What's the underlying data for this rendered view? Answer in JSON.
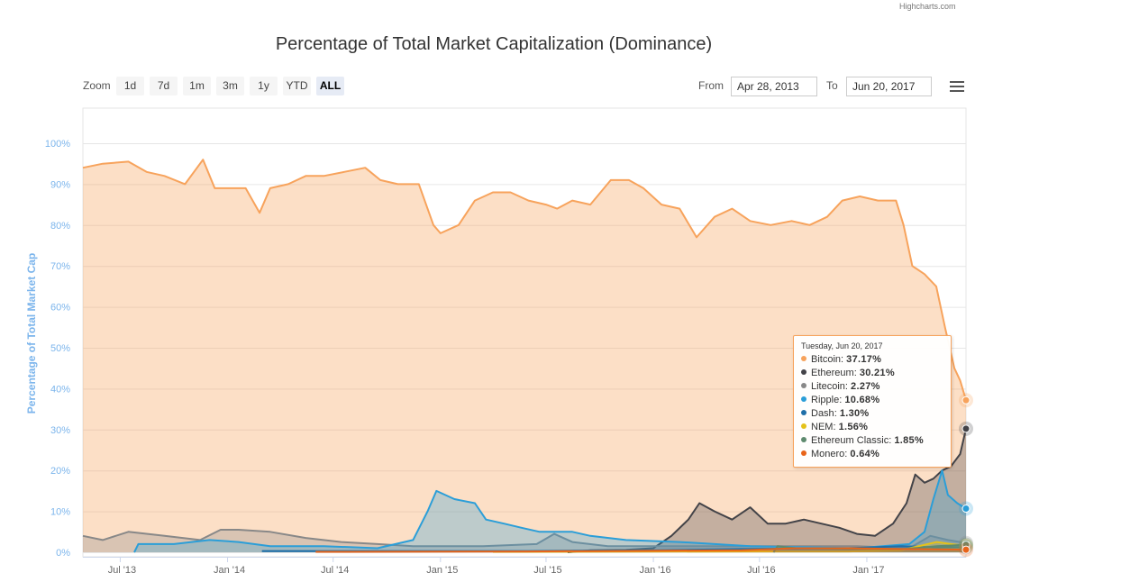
{
  "credit": "Highcharts.com",
  "range_selector": {
    "zoom_label": "Zoom",
    "buttons": [
      {
        "label": "1d",
        "active": false
      },
      {
        "label": "7d",
        "active": false
      },
      {
        "label": "1m",
        "active": false
      },
      {
        "label": "3m",
        "active": false
      },
      {
        "label": "1y",
        "active": false
      },
      {
        "label": "YTD",
        "active": false
      },
      {
        "label": "ALL",
        "active": true
      }
    ],
    "from_label": "From",
    "from_value": "Apr 28, 2013",
    "to_label": "To",
    "to_value": "Jun 20, 2017"
  },
  "menu_icon": "hamburger-menu-icon",
  "tooltip": {
    "date": "Tuesday, Jun 20, 2017",
    "rows": [
      {
        "name": "Bitcoin",
        "value": "37.17%",
        "color": "#f7a35c"
      },
      {
        "name": "Ethereum",
        "value": "30.21%",
        "color": "#434348"
      },
      {
        "name": "Litecoin",
        "value": "2.27%",
        "color": "#888888"
      },
      {
        "name": "Ripple",
        "value": "10.68%",
        "color": "#2b9ed8"
      },
      {
        "name": "Dash",
        "value": "1.30%",
        "color": "#1f6fa8"
      },
      {
        "name": "NEM",
        "value": "1.56%",
        "color": "#e4c21a"
      },
      {
        "name": "Ethereum Classic",
        "value": "1.85%",
        "color": "#5e8a6e"
      },
      {
        "name": "Monero",
        "value": "0.64%",
        "color": "#e8641a"
      }
    ]
  },
  "chart_data": {
    "type": "area",
    "title": "Percentage of Total Market Capitalization (Dominance)",
    "xlabel": "",
    "ylabel": "Percentage of Total Market Cap",
    "x_range": [
      "2013-04-28",
      "2017-06-20"
    ],
    "ylim": [
      0,
      100
    ],
    "y_ticks": [
      "0%",
      "10%",
      "20%",
      "30%",
      "40%",
      "50%",
      "60%",
      "70%",
      "80%",
      "90%",
      "100%"
    ],
    "x_ticks": [
      {
        "label": "Jul '13",
        "date": "2013-07-01"
      },
      {
        "label": "Jan '14",
        "date": "2014-01-01"
      },
      {
        "label": "Jul '14",
        "date": "2014-07-01"
      },
      {
        "label": "Jan '15",
        "date": "2015-01-01"
      },
      {
        "label": "Jul '15",
        "date": "2015-07-01"
      },
      {
        "label": "Jan '16",
        "date": "2016-01-01"
      },
      {
        "label": "Jul '16",
        "date": "2016-07-01"
      },
      {
        "label": "Jan '17",
        "date": "2017-01-01"
      }
    ],
    "grid": true,
    "colors": {
      "bitcoin": "#f7a35c",
      "ethereum": "#434348",
      "litecoin": "#888888",
      "ripple": "#2b9ed8",
      "dash": "#1f6fa8",
      "nem": "#e4c21a",
      "ethereum_classic": "#5e8a6e",
      "monero": "#e8641a"
    },
    "series": [
      {
        "name": "Bitcoin",
        "color": "#f7a35c",
        "points": [
          [
            "2013-04-28",
            94
          ],
          [
            "2013-06-01",
            95
          ],
          [
            "2013-07-15",
            95.5
          ],
          [
            "2013-08-15",
            93
          ],
          [
            "2013-09-15",
            92
          ],
          [
            "2013-10-20",
            90
          ],
          [
            "2013-11-20",
            96
          ],
          [
            "2013-12-10",
            89
          ],
          [
            "2014-01-01",
            89
          ],
          [
            "2014-02-01",
            89
          ],
          [
            "2014-02-25",
            83
          ],
          [
            "2014-03-15",
            89
          ],
          [
            "2014-04-15",
            90
          ],
          [
            "2014-05-15",
            92
          ],
          [
            "2014-06-15",
            92
          ],
          [
            "2014-07-20",
            93
          ],
          [
            "2014-08-25",
            94
          ],
          [
            "2014-09-20",
            91
          ],
          [
            "2014-10-20",
            90
          ],
          [
            "2014-11-25",
            90
          ],
          [
            "2014-12-20",
            80
          ],
          [
            "2015-01-01",
            78
          ],
          [
            "2015-02-01",
            80
          ],
          [
            "2015-03-01",
            86
          ],
          [
            "2015-04-01",
            88
          ],
          [
            "2015-05-01",
            88
          ],
          [
            "2015-06-01",
            86
          ],
          [
            "2015-07-01",
            85
          ],
          [
            "2015-07-20",
            84
          ],
          [
            "2015-08-15",
            86
          ],
          [
            "2015-09-15",
            85
          ],
          [
            "2015-10-20",
            91
          ],
          [
            "2015-11-20",
            91
          ],
          [
            "2015-12-15",
            89
          ],
          [
            "2016-01-15",
            85
          ],
          [
            "2016-02-15",
            84
          ],
          [
            "2016-03-15",
            77
          ],
          [
            "2016-04-15",
            82
          ],
          [
            "2016-05-15",
            84
          ],
          [
            "2016-06-15",
            81
          ],
          [
            "2016-07-20",
            80
          ],
          [
            "2016-08-25",
            81
          ],
          [
            "2016-09-25",
            80
          ],
          [
            "2016-10-25",
            82
          ],
          [
            "2016-11-20",
            86
          ],
          [
            "2016-12-20",
            87
          ],
          [
            "2017-01-20",
            86
          ],
          [
            "2017-02-20",
            86
          ],
          [
            "2017-03-05",
            80
          ],
          [
            "2017-03-20",
            70
          ],
          [
            "2017-04-10",
            68
          ],
          [
            "2017-04-30",
            65
          ],
          [
            "2017-05-15",
            55
          ],
          [
            "2017-05-31",
            45
          ],
          [
            "2017-06-10",
            42
          ],
          [
            "2017-06-20",
            37.17
          ]
        ]
      },
      {
        "name": "Ethereum",
        "color": "#434348",
        "points": [
          [
            "2015-08-07",
            0
          ],
          [
            "2015-09-15",
            0.5
          ],
          [
            "2015-11-15",
            0.6
          ],
          [
            "2016-01-01",
            1
          ],
          [
            "2016-02-01",
            4
          ],
          [
            "2016-03-01",
            8
          ],
          [
            "2016-03-20",
            12
          ],
          [
            "2016-04-15",
            10
          ],
          [
            "2016-05-15",
            8
          ],
          [
            "2016-06-15",
            11
          ],
          [
            "2016-07-15",
            7
          ],
          [
            "2016-08-15",
            7
          ],
          [
            "2016-09-15",
            8
          ],
          [
            "2016-10-15",
            7
          ],
          [
            "2016-11-15",
            6
          ],
          [
            "2016-12-15",
            4.5
          ],
          [
            "2017-01-15",
            4
          ],
          [
            "2017-02-15",
            7
          ],
          [
            "2017-03-10",
            12
          ],
          [
            "2017-03-25",
            19
          ],
          [
            "2017-04-10",
            17
          ],
          [
            "2017-04-25",
            18
          ],
          [
            "2017-05-10",
            20
          ],
          [
            "2017-05-25",
            21
          ],
          [
            "2017-06-10",
            24
          ],
          [
            "2017-06-20",
            30.21
          ]
        ]
      },
      {
        "name": "Litecoin",
        "color": "#888888",
        "points": [
          [
            "2013-04-28",
            4
          ],
          [
            "2013-06-01",
            3
          ],
          [
            "2013-07-15",
            5
          ],
          [
            "2013-09-15",
            4
          ],
          [
            "2013-11-15",
            3
          ],
          [
            "2013-12-20",
            5.5
          ],
          [
            "2014-01-20",
            5.5
          ],
          [
            "2014-03-15",
            5
          ],
          [
            "2014-05-15",
            3.5
          ],
          [
            "2014-07-15",
            2.5
          ],
          [
            "2014-09-15",
            2
          ],
          [
            "2014-11-15",
            1.5
          ],
          [
            "2015-03-15",
            1.5
          ],
          [
            "2015-06-15",
            2
          ],
          [
            "2015-07-15",
            4.5
          ],
          [
            "2015-08-15",
            2.5
          ],
          [
            "2015-10-15",
            1.5
          ],
          [
            "2016-06-15",
            1.5
          ],
          [
            "2016-12-15",
            1.5
          ],
          [
            "2017-03-15",
            1
          ],
          [
            "2017-04-20",
            4
          ],
          [
            "2017-05-20",
            3
          ],
          [
            "2017-06-20",
            2.27
          ]
        ]
      },
      {
        "name": "Ripple",
        "color": "#2b9ed8",
        "points": [
          [
            "2013-07-25",
            0
          ],
          [
            "2013-08-01",
            2
          ],
          [
            "2013-10-01",
            2
          ],
          [
            "2013-12-01",
            3
          ],
          [
            "2014-01-20",
            2.5
          ],
          [
            "2014-03-15",
            1.5
          ],
          [
            "2014-06-15",
            1.5
          ],
          [
            "2014-09-15",
            1
          ],
          [
            "2014-11-15",
            3
          ],
          [
            "2014-12-10",
            10
          ],
          [
            "2014-12-25",
            15
          ],
          [
            "2015-01-25",
            13
          ],
          [
            "2015-03-01",
            12
          ],
          [
            "2015-03-20",
            8
          ],
          [
            "2015-04-20",
            7
          ],
          [
            "2015-05-20",
            6
          ],
          [
            "2015-06-20",
            5
          ],
          [
            "2015-08-15",
            5
          ],
          [
            "2015-09-15",
            4
          ],
          [
            "2015-11-15",
            3
          ],
          [
            "2016-02-15",
            2.5
          ],
          [
            "2016-06-15",
            1.5
          ],
          [
            "2016-12-15",
            1
          ],
          [
            "2017-03-15",
            2
          ],
          [
            "2017-04-10",
            5
          ],
          [
            "2017-04-25",
            13
          ],
          [
            "2017-05-10",
            20
          ],
          [
            "2017-05-20",
            14
          ],
          [
            "2017-06-05",
            12
          ],
          [
            "2017-06-20",
            10.68
          ]
        ]
      },
      {
        "name": "Dash",
        "color": "#1f6fa8",
        "points": [
          [
            "2014-03-01",
            0.3
          ],
          [
            "2014-10-01",
            0.3
          ],
          [
            "2015-06-01",
            0.3
          ],
          [
            "2016-01-01",
            0.5
          ],
          [
            "2016-06-01",
            0.8
          ],
          [
            "2016-12-01",
            1
          ],
          [
            "2017-03-01",
            1.5
          ],
          [
            "2017-05-01",
            1.2
          ],
          [
            "2017-06-20",
            1.3
          ]
        ]
      },
      {
        "name": "NEM",
        "color": "#e4c21a",
        "points": [
          [
            "2015-04-01",
            0.1
          ],
          [
            "2016-06-01",
            0.2
          ],
          [
            "2016-12-01",
            0.2
          ],
          [
            "2017-03-01",
            0.5
          ],
          [
            "2017-05-01",
            2.5
          ],
          [
            "2017-05-25",
            2
          ],
          [
            "2017-06-20",
            1.56
          ]
        ]
      },
      {
        "name": "Ethereum Classic",
        "color": "#5e8a6e",
        "points": [
          [
            "2016-07-25",
            0
          ],
          [
            "2016-08-01",
            1.5
          ],
          [
            "2016-09-01",
            1
          ],
          [
            "2016-12-01",
            0.8
          ],
          [
            "2017-03-01",
            0.7
          ],
          [
            "2017-05-01",
            1.5
          ],
          [
            "2017-06-20",
            1.85
          ]
        ]
      },
      {
        "name": "Monero",
        "color": "#e8641a",
        "points": [
          [
            "2014-06-01",
            0.1
          ],
          [
            "2015-06-01",
            0.2
          ],
          [
            "2016-06-01",
            0.5
          ],
          [
            "2016-09-01",
            1
          ],
          [
            "2016-12-01",
            1
          ],
          [
            "2017-03-01",
            0.8
          ],
          [
            "2017-06-20",
            0.64
          ]
        ]
      }
    ]
  }
}
